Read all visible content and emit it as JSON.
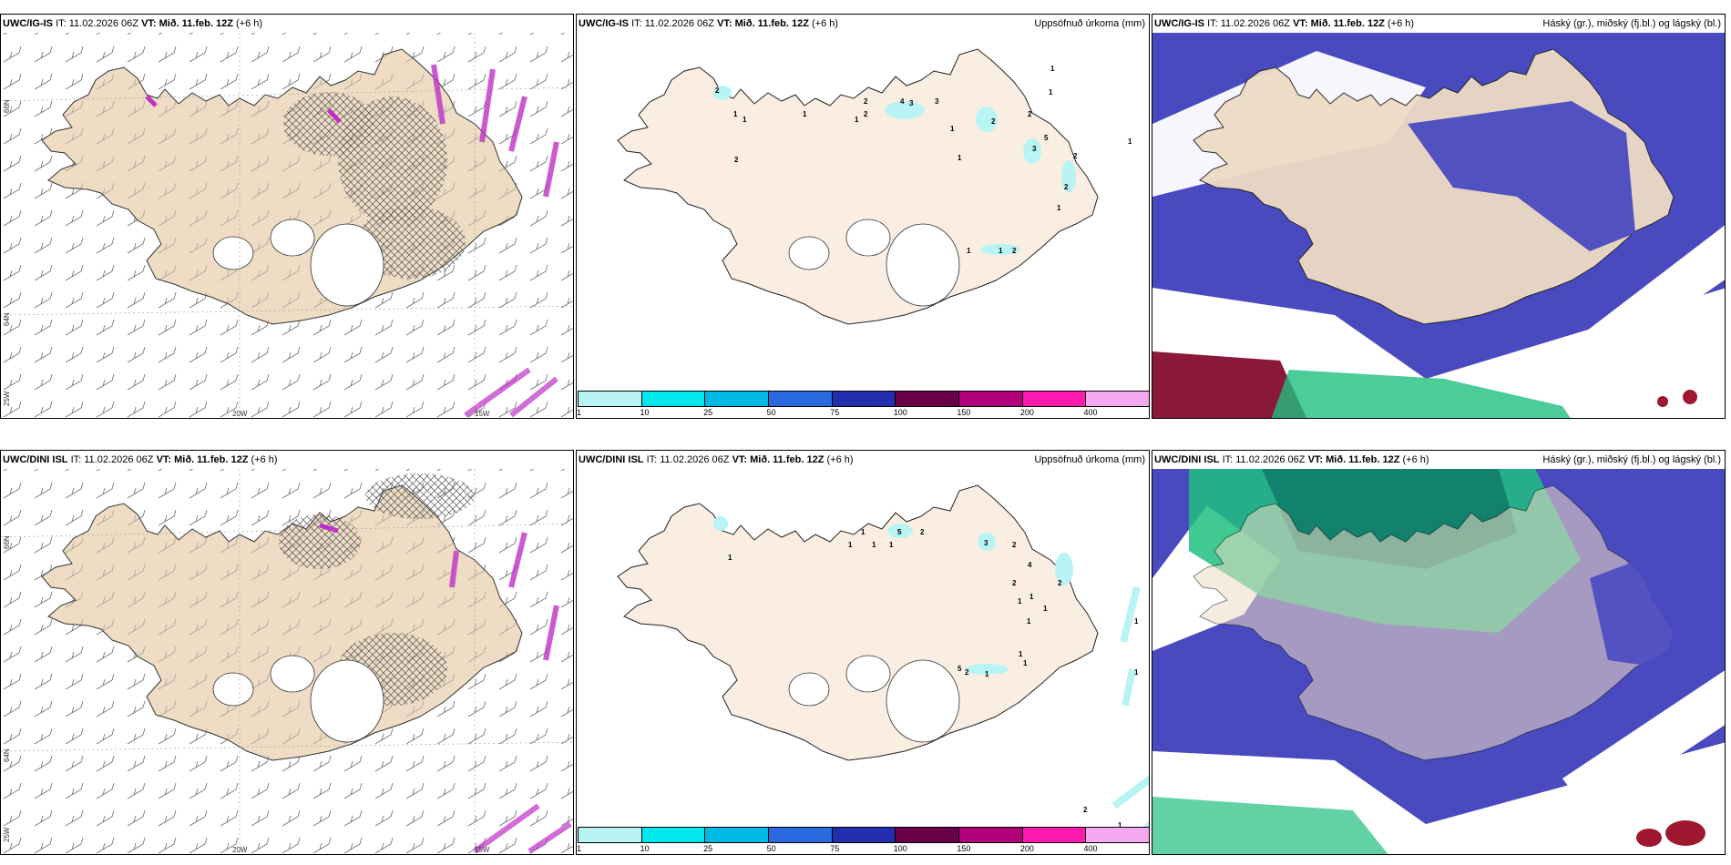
{
  "panels": [
    {
      "model": "UWC/IG-IS",
      "it_label": "IT:",
      "it_value": "11.02.2026 06Z",
      "vt_label": "VT:",
      "vt_value": "Mið. 11.feb. 12Z",
      "lead": "(+6 h)",
      "right_title": ""
    },
    {
      "model": "UWC/IG-IS",
      "it_label": "IT:",
      "it_value": "11.02.2026 06Z",
      "vt_label": "VT:",
      "vt_value": "Mið. 11.feb. 12Z",
      "lead": "(+6 h)",
      "right_title": "Uppsöfnuð úrkoma (mm)"
    },
    {
      "model": "UWC/IG-IS",
      "it_label": "IT:",
      "it_value": "11.02.2026 06Z",
      "vt_label": "VT:",
      "vt_value": "Mið. 11.feb. 12Z",
      "lead": "(+6 h)",
      "right_title": "Háský (gr.), miðský (fj.bl.) og lágský (bl.)"
    },
    {
      "model": "UWC/DINI ISL",
      "it_label": "IT:",
      "it_value": "11.02.2026 06Z",
      "vt_label": "VT:",
      "vt_value": "Mið. 11.feb. 12Z",
      "lead": "(+6 h)",
      "right_title": ""
    },
    {
      "model": "UWC/DINI ISL",
      "it_label": "IT:",
      "it_value": "11.02.2026 06Z",
      "vt_label": "VT:",
      "vt_value": "Mið. 11.feb. 12Z",
      "lead": "(+6 h)",
      "right_title": "Uppsöfnuð úrkoma (mm)"
    },
    {
      "model": "UWC/DINI ISL",
      "it_label": "IT:",
      "it_value": "11.02.2026 06Z",
      "vt_label": "VT:",
      "vt_value": "Mið. 11.feb. 12Z",
      "lead": "(+6 h)",
      "right_title": "Háský (gr.), miðský (fj.bl.) og lágský (bl.)"
    }
  ],
  "grid_labels": {
    "lat66": "66N",
    "lat64": "64N",
    "lon25": "25W",
    "lon20": "20W",
    "lon15": "15W"
  },
  "colorbar": {
    "labels": [
      "1",
      "10",
      "25",
      "50",
      "75",
      "100",
      "150",
      "200",
      "400"
    ],
    "colors": [
      "#b8f4f4",
      "#00e8ee",
      "#00b8e4",
      "#2a6ae0",
      "#2230b0",
      "#6a0048",
      "#b0007a",
      "#ff1ab0",
      "#f4a8f0"
    ]
  },
  "precip_numbers_top": [
    "2",
    "1",
    "1",
    "1",
    "2",
    "1",
    "2",
    "2",
    "4",
    "3",
    "3",
    "2",
    "2",
    "5",
    "1",
    "3",
    "1",
    "2",
    "2",
    "1",
    "1",
    "1",
    "1",
    "2",
    "1",
    "1"
  ],
  "precip_numbers_bottom": [
    "1",
    "1",
    "1",
    "1",
    "5",
    "2",
    "1",
    "3",
    "2",
    "4",
    "2",
    "2",
    "1",
    "1",
    "1",
    "1",
    "1",
    "5",
    "2",
    "1",
    "1",
    "1",
    "1",
    "2",
    "1"
  ],
  "colors": {
    "land": "#eedcc4",
    "land_light": "#faeee2",
    "high_cloud_green": "#1fbf7f",
    "mid_cloud": "#3a3ab0",
    "low_cloud": "#5a6ad8",
    "precip_light": "#b8f4f4"
  }
}
